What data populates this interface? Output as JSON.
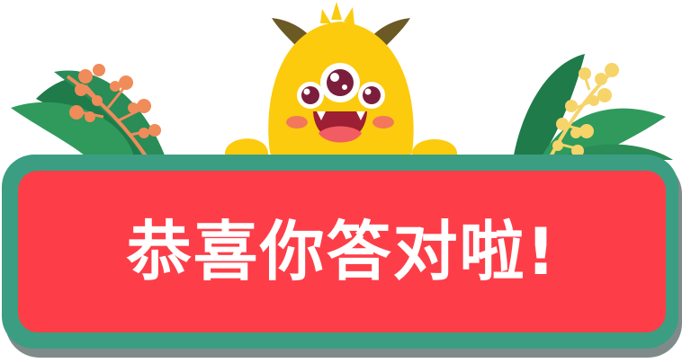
{
  "banner": {
    "message": "恭喜你答对啦!"
  },
  "colors": {
    "banner_fill": "#fd3e48",
    "banner_border": "#3b9e82",
    "banner_shadow": "#7f8a8b",
    "monster_body": "#fccb0e",
    "monster_horns": "#6b5a25",
    "monster_iris": "#7a1e3b",
    "monster_mouth": "#9c1f33",
    "monster_tongue": "#f25d63",
    "monster_cheeks": "#f2775b",
    "leaves_dark": "#1f7b4a",
    "leaves_light": "#2f9a5c",
    "berries_orange": "#f08c5a",
    "berries_yellow": "#f6d46a"
  },
  "icons": {
    "mascot": "three-eyed-yellow-monster-icon",
    "left_plant": "leaf-with-orange-berries-icon",
    "right_plant": "leaf-with-yellow-berries-icon"
  }
}
